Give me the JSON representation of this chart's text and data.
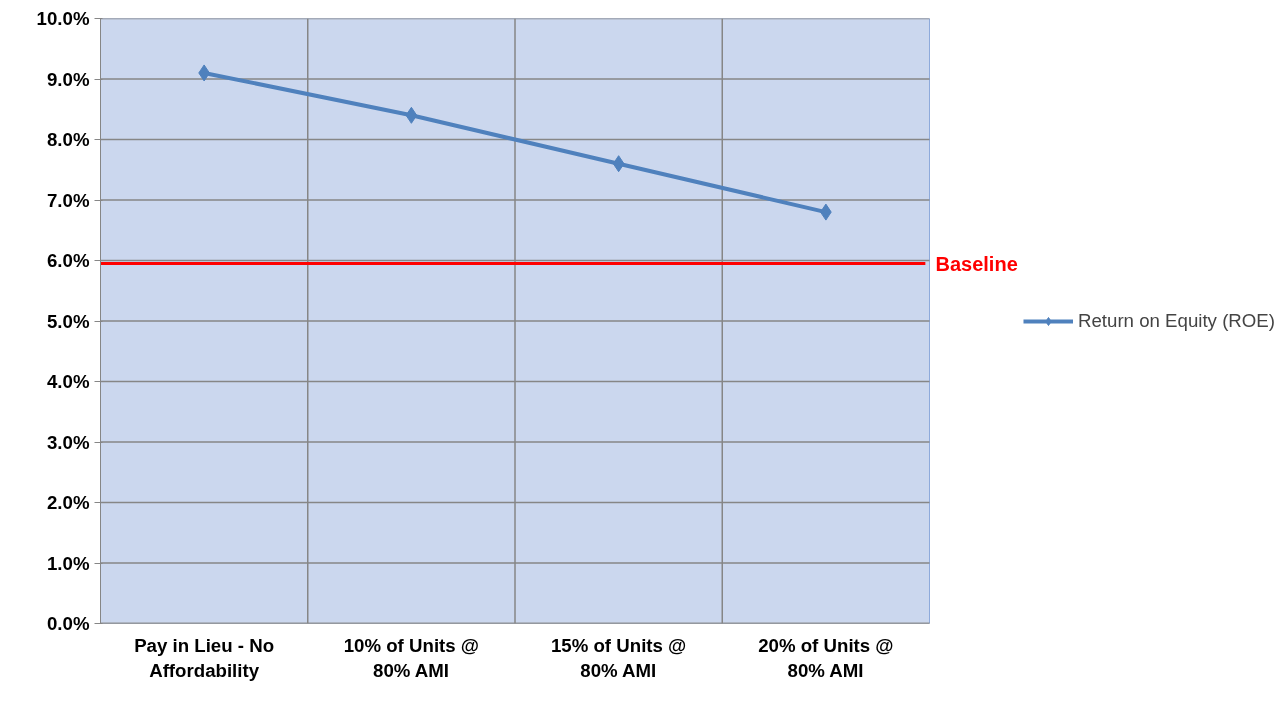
{
  "chart_data": {
    "type": "line",
    "categories": [
      "Pay in Lieu - No\nAffordability",
      "10% of Units @\n80% AMI",
      "15% of Units @\n80% AMI",
      "20% of Units @\n80% AMI"
    ],
    "series": [
      {
        "name": "Return on Equity (ROE)",
        "color": "#4f81bd",
        "values": [
          9.1,
          8.4,
          7.6,
          6.8
        ]
      }
    ],
    "ylim": [
      0,
      10
    ],
    "yticks": [
      {
        "value": 0,
        "label": "0.0%"
      },
      {
        "value": 1,
        "label": "1.0%"
      },
      {
        "value": 2,
        "label": "2.0%"
      },
      {
        "value": 3,
        "label": "3.0%"
      },
      {
        "value": 4,
        "label": "4.0%"
      },
      {
        "value": 5,
        "label": "5.0%"
      },
      {
        "value": 6,
        "label": "6.0%"
      },
      {
        "value": 7,
        "label": "7.0%"
      },
      {
        "value": 8,
        "label": "8.0%"
      },
      {
        "value": 9,
        "label": "9.0%"
      },
      {
        "value": 10,
        "label": "10.0%"
      }
    ],
    "ref_lines": [
      {
        "axis": "y",
        "value": 5.95,
        "label": "Baseline",
        "color": "#ff0000"
      }
    ],
    "grid": true,
    "legend": "right",
    "marker": "diamond",
    "line_style": "solid"
  }
}
